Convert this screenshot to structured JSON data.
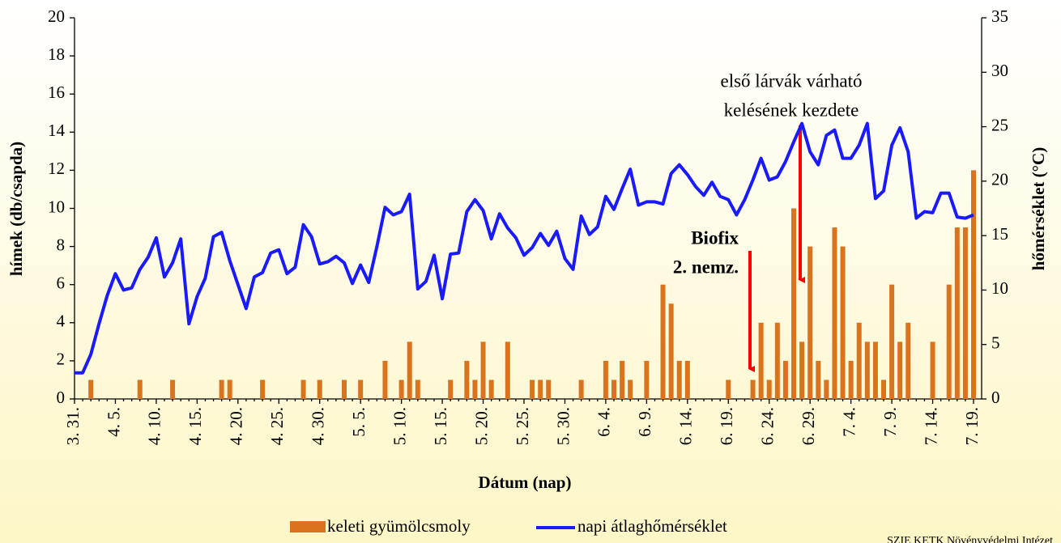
{
  "chart_data": {
    "type": "bar_line",
    "x_label": "Dátum (nap)",
    "y_label": "hímek (db/csapda)",
    "y2_label": "hőmérséklet (°C)",
    "categories": [
      "3. 31.",
      null,
      null,
      null,
      null,
      "4. 5.",
      null,
      null,
      null,
      null,
      "4. 10.",
      null,
      null,
      null,
      null,
      "4. 15.",
      null,
      null,
      null,
      null,
      "4. 20.",
      null,
      null,
      null,
      null,
      "4. 25.",
      null,
      null,
      null,
      null,
      "4. 30.",
      null,
      null,
      null,
      null,
      "5. 5.",
      null,
      null,
      null,
      null,
      "5. 10.",
      null,
      null,
      null,
      null,
      "5. 15.",
      null,
      null,
      null,
      null,
      "5. 20.",
      null,
      null,
      null,
      null,
      "5. 25.",
      null,
      null,
      null,
      null,
      "5. 30.",
      null,
      null,
      null,
      null,
      "6. 4.",
      null,
      null,
      null,
      null,
      "6. 9.",
      null,
      null,
      null,
      null,
      "6. 14.",
      null,
      null,
      null,
      null,
      "6. 19.",
      null,
      null,
      null,
      null,
      "6. 24.",
      null,
      null,
      null,
      null,
      "6. 29.",
      null,
      null,
      null,
      null,
      "7. 4.",
      null,
      null,
      null,
      null,
      "7. 9.",
      null,
      null,
      null,
      null,
      "7. 14.",
      null,
      null,
      null,
      null,
      "7. 19."
    ],
    "series": [
      {
        "name": "keleti gyümölcsmoly",
        "kind": "bar",
        "color": "#d9731e",
        "values": [
          0,
          0,
          1,
          0,
          0,
          0,
          0,
          0,
          1,
          0,
          0,
          0,
          1,
          0,
          0,
          0,
          0,
          0,
          1,
          1,
          0,
          0,
          0,
          1,
          0,
          0,
          0,
          0,
          1,
          0,
          1,
          0,
          0,
          1,
          0,
          1,
          0,
          0,
          2,
          0,
          1,
          3,
          1,
          0,
          0,
          0,
          1,
          0,
          2,
          1,
          3,
          1,
          0,
          3,
          0,
          0,
          1,
          1,
          1,
          0,
          0,
          0,
          1,
          0,
          0,
          2,
          1,
          2,
          1,
          0,
          2,
          0,
          6,
          5,
          2,
          2,
          0,
          0,
          0,
          0,
          1,
          0,
          0,
          1,
          4,
          1,
          4,
          2,
          10,
          3,
          8,
          2,
          1,
          9,
          8,
          2,
          4,
          3,
          3,
          1,
          6,
          3,
          4,
          0,
          0,
          3,
          0,
          6,
          9,
          9,
          12
        ]
      },
      {
        "name": "napi átlaghőmérséklet",
        "kind": "line",
        "axis": "y2",
        "color": "#1a1aff",
        "values": [
          2.4,
          2.4,
          4.1,
          6.9,
          9.5,
          11.5,
          10,
          10.2,
          11.9,
          13,
          14.8,
          11.2,
          12.5,
          14.7,
          6.9,
          9.4,
          11.1,
          14.9,
          15.3,
          12.7,
          10.5,
          8.3,
          11.2,
          11.6,
          13.4,
          13.7,
          11.5,
          12.1,
          16,
          14.9,
          12.4,
          12.6,
          13.1,
          12.5,
          10.6,
          12.3,
          10.7,
          14,
          17.6,
          16.9,
          17.2,
          18.8,
          10.1,
          10.8,
          13.2,
          9.2,
          13.3,
          13.4,
          17.2,
          18.3,
          17.3,
          14.7,
          17,
          15.7,
          14.8,
          13.2,
          13.9,
          15.2,
          14.1,
          15.4,
          12.9,
          11.9,
          16.8,
          15.1,
          15.8,
          18.6,
          17.4,
          19.3,
          21.1,
          17.8,
          18.1,
          18.1,
          17.9,
          20.7,
          21.5,
          20.6,
          19.5,
          18.7,
          19.9,
          18.6,
          18.3,
          16.9,
          18.3,
          20.1,
          22.1,
          20.1,
          20.4,
          21.8,
          23.6,
          25.3,
          22.7,
          21.5,
          24.2,
          24.7,
          22.1,
          22.1,
          23.3,
          25.3,
          18.4,
          19.1,
          23.3,
          24.9,
          22.7,
          16.6,
          17.2,
          17.1,
          18.9,
          18.9,
          16.7,
          16.6,
          16.9
        ]
      }
    ],
    "ylim": [
      0,
      20
    ],
    "yticks": [
      0,
      2,
      4,
      6,
      8,
      10,
      12,
      14,
      16,
      18,
      20
    ],
    "y2lim": [
      0,
      35
    ],
    "y2ticks": [
      0,
      5,
      10,
      15,
      20,
      25,
      30,
      35
    ],
    "annotations": [
      {
        "lines": [
          "első lárvák várható",
          "kelésének kezdete"
        ],
        "color": "#ff0000"
      },
      {
        "lines": [
          "Biofix",
          "2. nemz."
        ],
        "color": "#ff0000"
      }
    ],
    "legend": "bottom",
    "source": "SZIE KETK Növényvédelmi Intézet"
  }
}
